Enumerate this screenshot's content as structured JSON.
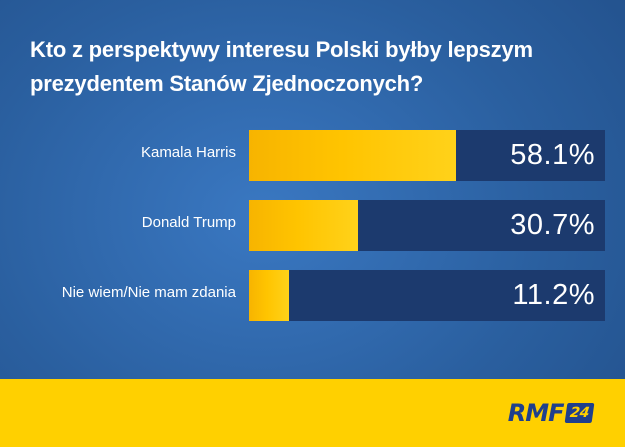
{
  "chart_data": {
    "type": "bar",
    "orientation": "horizontal",
    "title": "Kto z perspektywy interesu Polski byłby lepszym prezydentem Stanów Zjednoczonych?",
    "categories": [
      "Kamala Harris",
      "Donald Trump",
      "Nie wiem/Nie mam zdania"
    ],
    "values": [
      58.1,
      30.7,
      11.2
    ],
    "value_labels": [
      "58.1%",
      "30.7%",
      "11.2%"
    ],
    "xlim": [
      0,
      100
    ],
    "grid": false,
    "bar_color": "#ffc400",
    "track_color": "#1c3a6e"
  },
  "branding": {
    "logo_text": "RMF",
    "logo_badge": "24"
  },
  "colors": {
    "background": "#2a5f9f",
    "footer": "#ffd000",
    "logo": "#1f3f8c"
  }
}
